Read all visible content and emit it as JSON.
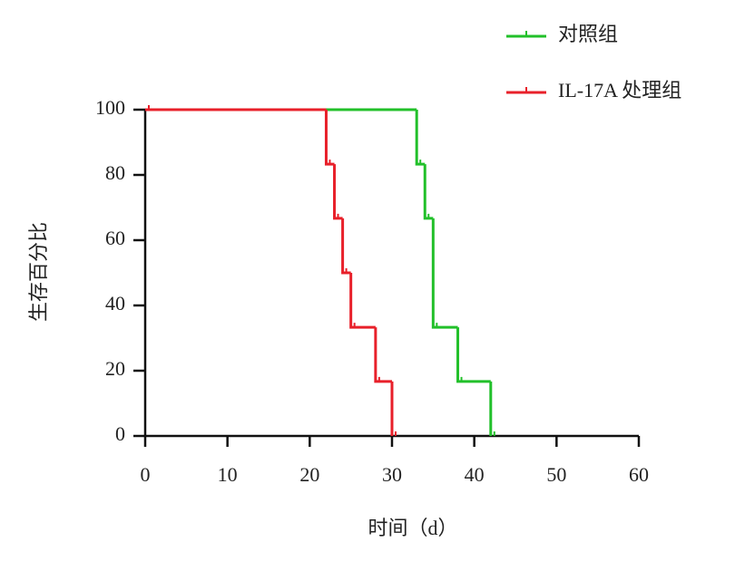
{
  "chart_data": {
    "type": "step",
    "xlabel": "时间（d）",
    "ylabel": "生存百分比",
    "xlim": [
      0,
      60
    ],
    "xticks": [
      0,
      10,
      20,
      30,
      40,
      50,
      60
    ],
    "ylim": [
      0,
      100
    ],
    "yticks": [
      0,
      20,
      40,
      60,
      80,
      100
    ],
    "legend": "top-right",
    "series": [
      {
        "name": "对照组",
        "color": "#22c02a",
        "x": [
          0,
          33,
          34,
          35,
          38,
          42
        ],
        "values": [
          100,
          83.3,
          66.7,
          33.3,
          16.7,
          0
        ]
      },
      {
        "name": "IL-17A 处理组",
        "color": "#e8202a",
        "x": [
          0,
          22,
          23,
          24,
          25,
          28,
          30
        ],
        "values": [
          100,
          83.3,
          66.7,
          50,
          33.3,
          16.7,
          0
        ]
      }
    ]
  }
}
